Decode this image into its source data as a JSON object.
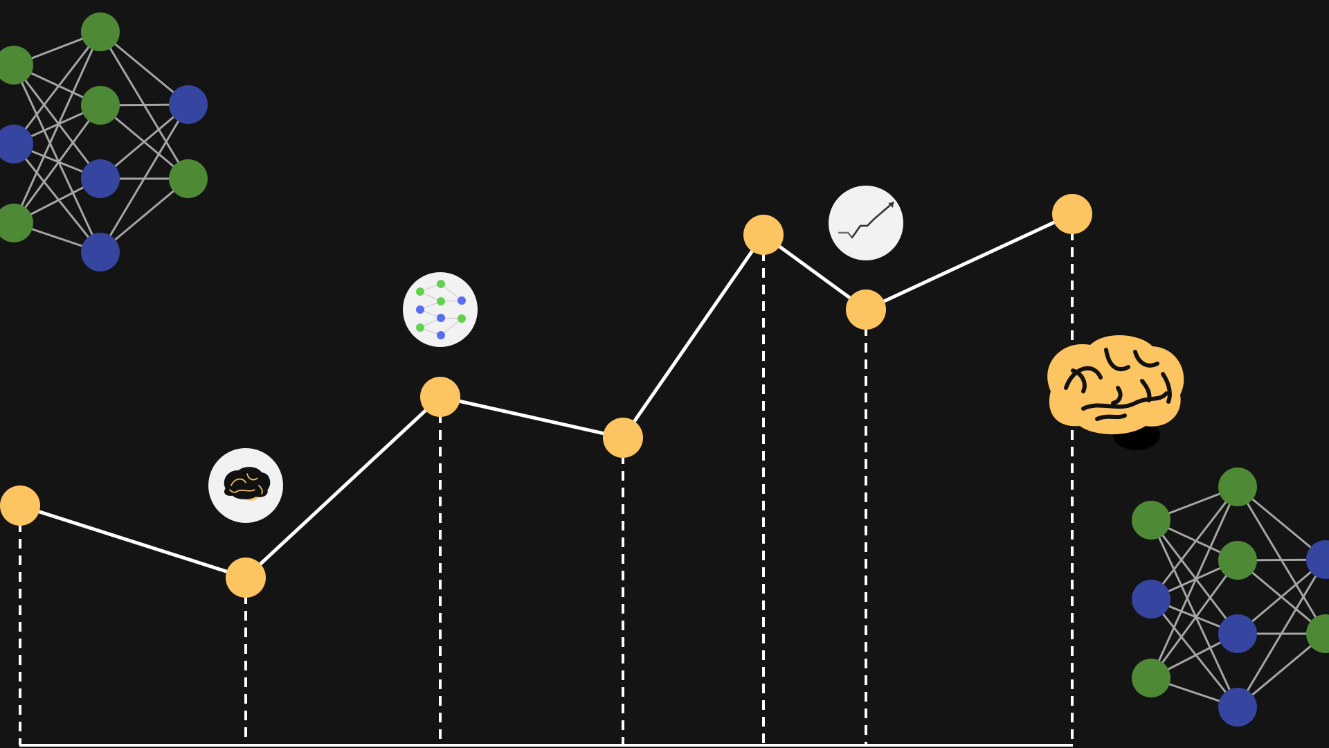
{
  "colors": {
    "background": "#141414",
    "node_yellow": "#fdc561",
    "line_white": "#ffffff",
    "net_green": "#4e8a36",
    "net_blue": "#3545a0",
    "net_edge": "#a6a6a6",
    "badge_bg": "#f2f2f2",
    "brain_fill": "#fdc561",
    "brain_stroke": "#111111"
  },
  "icons": {
    "badge_1": "brain-icon",
    "badge_2": "neural-network-icon",
    "badge_3": "trend-chart-icon",
    "large_decoration": "brain-icon",
    "corner_decorations": "neural-network-icon"
  }
}
